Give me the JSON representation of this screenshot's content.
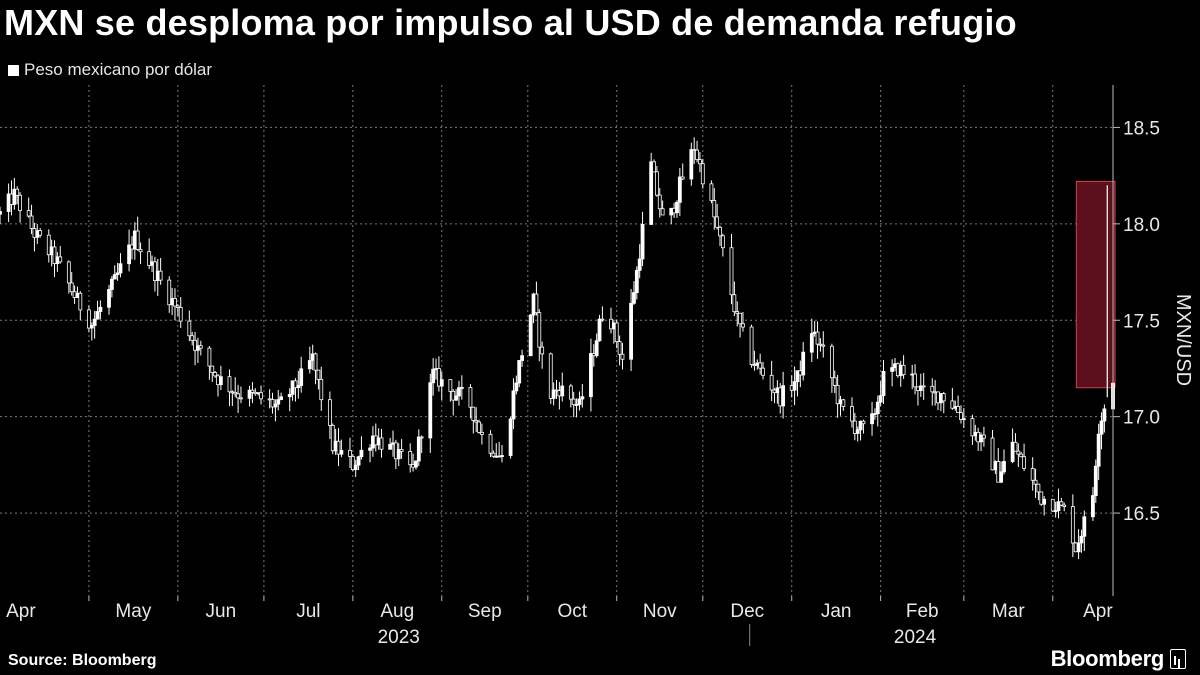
{
  "header": {
    "title": "MXN se desploma por impulso al USD de demanda refugio",
    "legend_label": "Peso mexicano por dólar"
  },
  "footer": {
    "source": "Source: Bloomberg",
    "brand": "Bloomberg"
  },
  "colors": {
    "background": "#000000",
    "series": "#ffffff",
    "grid": "#7a7a7a",
    "highlight_fill": "#5c0f1c",
    "highlight_border": "#c9424f"
  },
  "chart_data": {
    "type": "candlestick",
    "ylabel": "MXN/USD",
    "ylim": [
      16.07,
      18.72
    ],
    "y_ticks": [
      16.5,
      17.0,
      17.5,
      18.0,
      18.5
    ],
    "y_tick_labels": [
      "16.5",
      "17.0",
      "17.5",
      "18.0",
      "18.5"
    ],
    "x_start": "2023-03-31",
    "x_end": "2024-04-22",
    "month_labels": [
      {
        "label": "Apr",
        "date": "2023-04-01"
      },
      {
        "label": "May",
        "date": "2023-05-01"
      },
      {
        "label": "Jun",
        "date": "2023-06-01"
      },
      {
        "label": "Jul",
        "date": "2023-07-01"
      },
      {
        "label": "Aug",
        "date": "2023-08-01"
      },
      {
        "label": "Sep",
        "date": "2023-09-01"
      },
      {
        "label": "Oct",
        "date": "2023-10-01"
      },
      {
        "label": "Nov",
        "date": "2023-11-01"
      },
      {
        "label": "Dec",
        "date": "2023-12-01"
      },
      {
        "label": "Jan",
        "date": "2024-01-01"
      },
      {
        "label": "Feb",
        "date": "2024-02-01"
      },
      {
        "label": "Mar",
        "date": "2024-03-01"
      },
      {
        "label": "Apr",
        "date": "2024-04-01"
      }
    ],
    "year_labels": [
      {
        "label": "2023",
        "date": "2023-08-17"
      },
      {
        "label": "2024",
        "date": "2024-02-13"
      }
    ],
    "grid": true,
    "highlight": {
      "x_from": "2024-04-12",
      "x_to": "2024-04-22",
      "y_from": 17.15,
      "y_to": 18.22
    },
    "series": [
      {
        "anchors": [
          [
            "2023-03-31",
            18.05
          ],
          [
            "2023-04-05",
            18.15
          ],
          [
            "2023-04-12",
            17.95
          ],
          [
            "2023-04-20",
            17.8
          ],
          [
            "2023-04-27",
            17.6
          ],
          [
            "2023-05-02",
            17.48
          ],
          [
            "2023-05-10",
            17.7
          ],
          [
            "2023-05-17",
            17.93
          ],
          [
            "2023-05-24",
            17.75
          ],
          [
            "2023-06-01",
            17.55
          ],
          [
            "2023-06-08",
            17.35
          ],
          [
            "2023-06-15",
            17.2
          ],
          [
            "2023-06-22",
            17.12
          ],
          [
            "2023-06-29",
            17.1
          ],
          [
            "2023-07-06",
            17.05
          ],
          [
            "2023-07-13",
            17.18
          ],
          [
            "2023-07-18",
            17.3
          ],
          [
            "2023-07-25",
            16.85
          ],
          [
            "2023-08-01",
            16.75
          ],
          [
            "2023-08-08",
            16.9
          ],
          [
            "2023-08-15",
            16.82
          ],
          [
            "2023-08-22",
            16.72
          ],
          [
            "2023-08-29",
            17.22
          ],
          [
            "2023-09-05",
            17.12
          ],
          [
            "2023-09-10",
            17.1
          ],
          [
            "2023-09-15",
            16.9
          ],
          [
            "2023-09-22",
            16.78
          ],
          [
            "2023-09-27",
            17.2
          ],
          [
            "2023-10-03",
            17.6
          ],
          [
            "2023-10-08",
            17.1
          ],
          [
            "2023-10-12",
            17.15
          ],
          [
            "2023-10-19",
            17.05
          ],
          [
            "2023-10-24",
            17.35
          ],
          [
            "2023-10-28",
            17.6
          ],
          [
            "2023-11-03",
            17.3
          ],
          [
            "2023-11-08",
            17.75
          ],
          [
            "2023-11-13",
            18.3
          ],
          [
            "2023-11-18",
            17.95
          ],
          [
            "2023-11-23",
            18.2
          ],
          [
            "2023-11-28",
            18.4
          ],
          [
            "2023-12-03",
            18.15
          ],
          [
            "2023-12-08",
            17.85
          ],
          [
            "2023-12-13",
            17.5
          ],
          [
            "2023-12-18",
            17.3
          ],
          [
            "2023-12-23",
            17.2
          ],
          [
            "2023-12-28",
            17.1
          ],
          [
            "2024-01-03",
            17.2
          ],
          [
            "2024-01-08",
            17.45
          ],
          [
            "2024-01-13",
            17.3
          ],
          [
            "2024-01-18",
            17.05
          ],
          [
            "2024-01-23",
            16.95
          ],
          [
            "2024-01-28",
            16.92
          ],
          [
            "2024-02-02",
            17.2
          ],
          [
            "2024-02-07",
            17.25
          ],
          [
            "2024-02-12",
            17.2
          ],
          [
            "2024-02-17",
            17.1
          ],
          [
            "2024-02-22",
            17.12
          ],
          [
            "2024-02-27",
            17.05
          ],
          [
            "2024-03-03",
            16.95
          ],
          [
            "2024-03-08",
            16.85
          ],
          [
            "2024-03-13",
            16.7
          ],
          [
            "2024-03-18",
            16.85
          ],
          [
            "2024-03-23",
            16.72
          ],
          [
            "2024-03-28",
            16.58
          ],
          [
            "2024-04-02",
            16.55
          ],
          [
            "2024-04-06",
            16.5
          ],
          [
            "2024-04-09",
            16.32
          ],
          [
            "2024-04-12",
            16.45
          ],
          [
            "2024-04-15",
            16.6
          ],
          [
            "2024-04-17",
            16.95
          ],
          [
            "2024-04-19",
            17.05
          ],
          [
            "2024-04-22",
            17.2
          ]
        ],
        "spikes": [
          {
            "date": "2024-04-20",
            "high": 18.2,
            "low": 17.1
          }
        ]
      }
    ]
  }
}
